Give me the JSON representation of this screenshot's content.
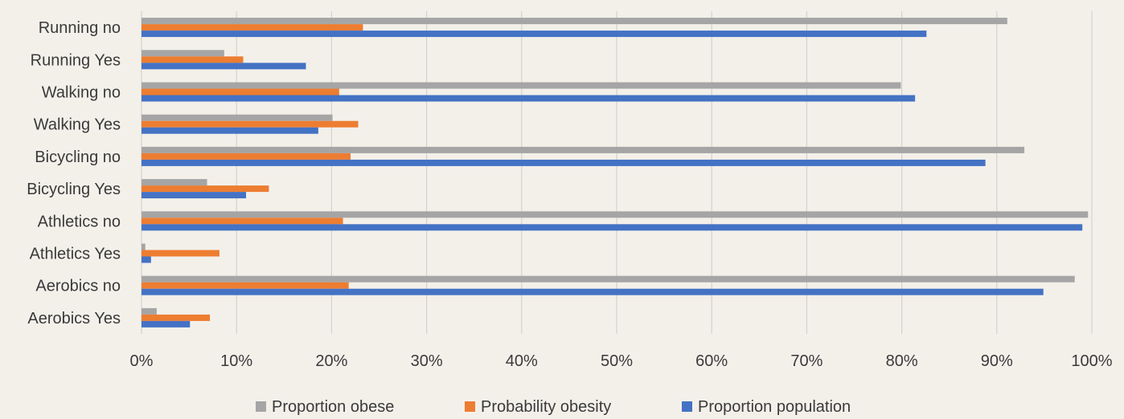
{
  "chart_data": {
    "type": "bar",
    "orientation": "horizontal",
    "title": "",
    "xlabel": "",
    "ylabel": "",
    "xlim": [
      0,
      1
    ],
    "grid": true,
    "legend_position": "bottom",
    "categories": [
      "Running no",
      "Running Yes",
      "Walking no",
      "Walking Yes",
      "Bicycling no",
      "Bicycling Yes",
      "Athletics no",
      "Athletics Yes",
      "Aerobics no",
      "Aerobics Yes"
    ],
    "x_ticks": [
      "0%",
      "10%",
      "20%",
      "30%",
      "40%",
      "50%",
      "60%",
      "70%",
      "80%",
      "90%",
      "100%"
    ],
    "series": [
      {
        "name": "Proportion obese",
        "color": "#a5a5a5",
        "values": [
          0.911,
          0.087,
          0.799,
          0.201,
          0.929,
          0.069,
          0.996,
          0.004,
          0.982,
          0.016
        ]
      },
      {
        "name": "Probability obesity",
        "color": "#ed7d31",
        "values": [
          0.233,
          0.107,
          0.208,
          0.228,
          0.22,
          0.134,
          0.212,
          0.082,
          0.218,
          0.072
        ]
      },
      {
        "name": "Proportion population",
        "color": "#4472c4",
        "values": [
          0.826,
          0.173,
          0.814,
          0.186,
          0.888,
          0.11,
          0.99,
          0.01,
          0.949,
          0.051
        ]
      }
    ]
  }
}
